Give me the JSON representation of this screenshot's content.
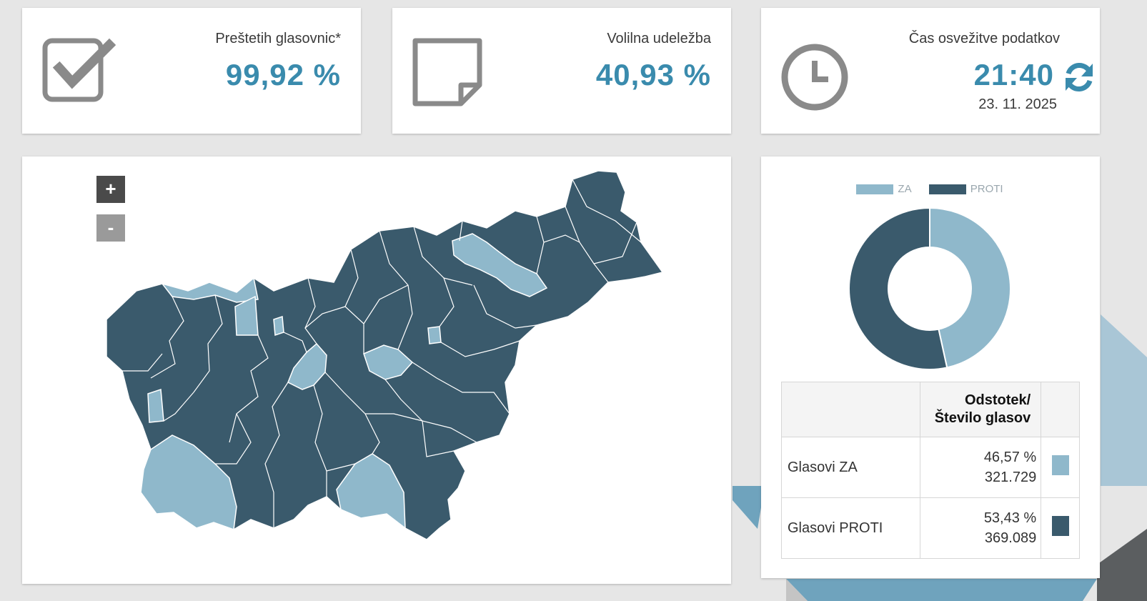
{
  "stats": {
    "counted": {
      "label": "Preštetih glasovnic*",
      "value": "99,92 %"
    },
    "turnout": {
      "label": "Volilna udeležba",
      "value": "40,93 %"
    },
    "refresh": {
      "label": "Čas osvežitve podatkov",
      "time": "21:40",
      "date": "23. 11. 2025"
    }
  },
  "icons": {
    "counted": "checkbox-checked-icon",
    "turnout": "note-icon",
    "refresh_time": "clock-icon",
    "refresh_action": "refresh-icon"
  },
  "map": {
    "zoom_in": "+",
    "zoom_out": "-"
  },
  "legend": [
    {
      "label": "ZA",
      "color": "#8fb8cb"
    },
    {
      "label": "PROTI",
      "color": "#3a5a6c"
    }
  ],
  "results_table": {
    "header": "Odstotek/ Število glasov",
    "rows": [
      {
        "label": "Glasovi ZA",
        "percent": "46,57 %",
        "votes": "321.729",
        "color": "#8fb8cb"
      },
      {
        "label": "Glasovi PROTI",
        "percent": "53,43 %",
        "votes": "369.089",
        "color": "#3a5a6c"
      }
    ]
  },
  "chart_data": {
    "type": "pie",
    "categories": [
      "ZA",
      "PROTI"
    ],
    "values": [
      46.57,
      53.43
    ],
    "colors": [
      "#8fb8cb",
      "#3a5a6c"
    ],
    "title": "",
    "legend_position": "top"
  },
  "colors": {
    "accent": "#3a8bad",
    "za": "#8fb8cb",
    "proti": "#3a5a6c",
    "zoom_in_bg": "#4a4a4a",
    "zoom_out_bg": "#9a9a9a"
  }
}
